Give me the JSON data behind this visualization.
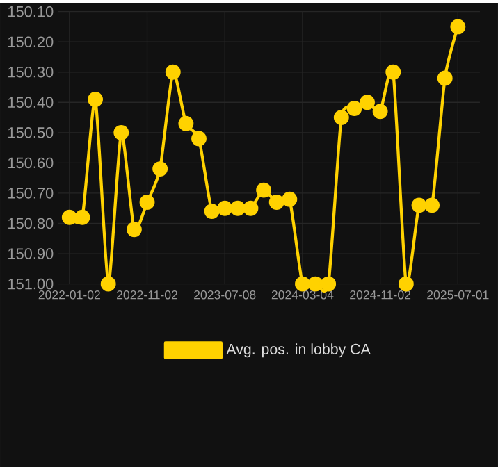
{
  "chart_data": {
    "type": "line",
    "categories": [
      "2022-01-02",
      null,
      null,
      null,
      null,
      null,
      "2022-11-02",
      null,
      null,
      null,
      null,
      null,
      "2023-07-08",
      null,
      null,
      null,
      null,
      null,
      "2024-03-04",
      null,
      null,
      null,
      null,
      null,
      "2024-11-02",
      null,
      null,
      null,
      null,
      null,
      "2025-07-01"
    ],
    "series": [
      {
        "name": "Avg. pos. in lobby CA",
        "color": "#ffd200",
        "values": [
          150.78,
          150.78,
          150.39,
          151.0,
          150.5,
          150.82,
          150.73,
          150.62,
          150.3,
          150.47,
          150.52,
          150.76,
          150.75,
          150.75,
          150.75,
          150.69,
          150.73,
          150.72,
          151.0,
          151.0,
          151.0,
          150.45,
          150.42,
          150.4,
          150.43,
          150.3,
          151.0,
          150.74,
          150.74,
          150.32,
          150.15
        ]
      }
    ],
    "ylim": [
      151.0,
      150.1
    ],
    "yticks": [
      {
        "value": 150.1,
        "label": "150.10"
      },
      {
        "value": 150.2,
        "label": "150.20"
      },
      {
        "value": 150.3,
        "label": "150.30"
      },
      {
        "value": 150.4,
        "label": "150.40"
      },
      {
        "value": 150.5,
        "label": "150.50"
      },
      {
        "value": 150.6,
        "label": "150.60"
      },
      {
        "value": 150.7,
        "label": "150.70"
      },
      {
        "value": 150.8,
        "label": "150.80"
      },
      {
        "value": 150.9,
        "label": "150.90"
      },
      {
        "value": 151.0,
        "label": "151.00"
      }
    ],
    "grid": true,
    "legend": "bottom",
    "marker": "circle",
    "line_style": "solid"
  }
}
